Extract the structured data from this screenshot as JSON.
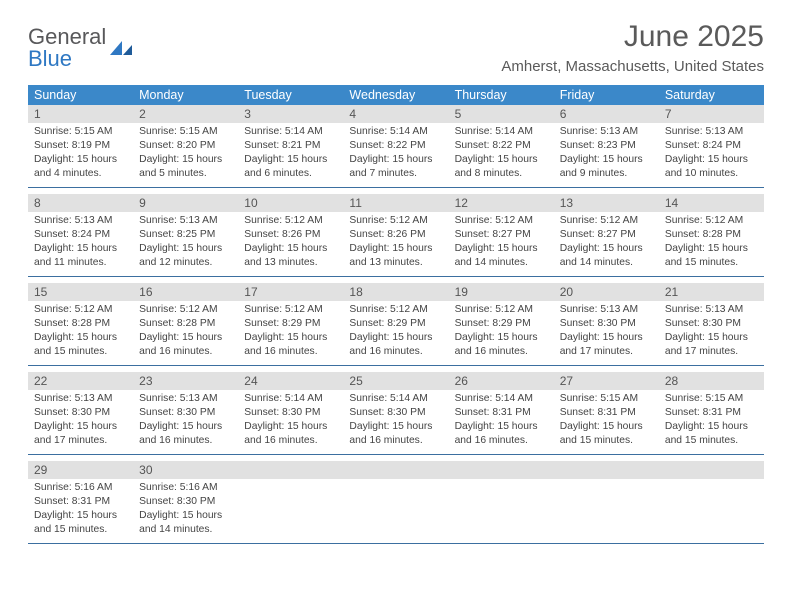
{
  "logo": {
    "text1": "General",
    "text2": "Blue"
  },
  "title": "June 2025",
  "location": "Amherst, Massachusetts, United States",
  "colors": {
    "header_bg": "#3b88c9",
    "daynum_bg": "#e1e1e1",
    "rule": "#3b6fa0",
    "text": "#444444",
    "title_color": "#5a5a5a"
  },
  "dow": [
    "Sunday",
    "Monday",
    "Tuesday",
    "Wednesday",
    "Thursday",
    "Friday",
    "Saturday"
  ],
  "weeks": [
    [
      {
        "n": "1",
        "sr": "5:15 AM",
        "ss": "8:19 PM",
        "dl": "15 hours and 4 minutes."
      },
      {
        "n": "2",
        "sr": "5:15 AM",
        "ss": "8:20 PM",
        "dl": "15 hours and 5 minutes."
      },
      {
        "n": "3",
        "sr": "5:14 AM",
        "ss": "8:21 PM",
        "dl": "15 hours and 6 minutes."
      },
      {
        "n": "4",
        "sr": "5:14 AM",
        "ss": "8:22 PM",
        "dl": "15 hours and 7 minutes."
      },
      {
        "n": "5",
        "sr": "5:14 AM",
        "ss": "8:22 PM",
        "dl": "15 hours and 8 minutes."
      },
      {
        "n": "6",
        "sr": "5:13 AM",
        "ss": "8:23 PM",
        "dl": "15 hours and 9 minutes."
      },
      {
        "n": "7",
        "sr": "5:13 AM",
        "ss": "8:24 PM",
        "dl": "15 hours and 10 minutes."
      }
    ],
    [
      {
        "n": "8",
        "sr": "5:13 AM",
        "ss": "8:24 PM",
        "dl": "15 hours and 11 minutes."
      },
      {
        "n": "9",
        "sr": "5:13 AM",
        "ss": "8:25 PM",
        "dl": "15 hours and 12 minutes."
      },
      {
        "n": "10",
        "sr": "5:12 AM",
        "ss": "8:26 PM",
        "dl": "15 hours and 13 minutes."
      },
      {
        "n": "11",
        "sr": "5:12 AM",
        "ss": "8:26 PM",
        "dl": "15 hours and 13 minutes."
      },
      {
        "n": "12",
        "sr": "5:12 AM",
        "ss": "8:27 PM",
        "dl": "15 hours and 14 minutes."
      },
      {
        "n": "13",
        "sr": "5:12 AM",
        "ss": "8:27 PM",
        "dl": "15 hours and 14 minutes."
      },
      {
        "n": "14",
        "sr": "5:12 AM",
        "ss": "8:28 PM",
        "dl": "15 hours and 15 minutes."
      }
    ],
    [
      {
        "n": "15",
        "sr": "5:12 AM",
        "ss": "8:28 PM",
        "dl": "15 hours and 15 minutes."
      },
      {
        "n": "16",
        "sr": "5:12 AM",
        "ss": "8:28 PM",
        "dl": "15 hours and 16 minutes."
      },
      {
        "n": "17",
        "sr": "5:12 AM",
        "ss": "8:29 PM",
        "dl": "15 hours and 16 minutes."
      },
      {
        "n": "18",
        "sr": "5:12 AM",
        "ss": "8:29 PM",
        "dl": "15 hours and 16 minutes."
      },
      {
        "n": "19",
        "sr": "5:12 AM",
        "ss": "8:29 PM",
        "dl": "15 hours and 16 minutes."
      },
      {
        "n": "20",
        "sr": "5:13 AM",
        "ss": "8:30 PM",
        "dl": "15 hours and 17 minutes."
      },
      {
        "n": "21",
        "sr": "5:13 AM",
        "ss": "8:30 PM",
        "dl": "15 hours and 17 minutes."
      }
    ],
    [
      {
        "n": "22",
        "sr": "5:13 AM",
        "ss": "8:30 PM",
        "dl": "15 hours and 17 minutes."
      },
      {
        "n": "23",
        "sr": "5:13 AM",
        "ss": "8:30 PM",
        "dl": "15 hours and 16 minutes."
      },
      {
        "n": "24",
        "sr": "5:14 AM",
        "ss": "8:30 PM",
        "dl": "15 hours and 16 minutes."
      },
      {
        "n": "25",
        "sr": "5:14 AM",
        "ss": "8:30 PM",
        "dl": "15 hours and 16 minutes."
      },
      {
        "n": "26",
        "sr": "5:14 AM",
        "ss": "8:31 PM",
        "dl": "15 hours and 16 minutes."
      },
      {
        "n": "27",
        "sr": "5:15 AM",
        "ss": "8:31 PM",
        "dl": "15 hours and 15 minutes."
      },
      {
        "n": "28",
        "sr": "5:15 AM",
        "ss": "8:31 PM",
        "dl": "15 hours and 15 minutes."
      }
    ],
    [
      {
        "n": "29",
        "sr": "5:16 AM",
        "ss": "8:31 PM",
        "dl": "15 hours and 15 minutes."
      },
      {
        "n": "30",
        "sr": "5:16 AM",
        "ss": "8:30 PM",
        "dl": "15 hours and 14 minutes."
      },
      null,
      null,
      null,
      null,
      null
    ]
  ],
  "labels": {
    "sunrise": "Sunrise:",
    "sunset": "Sunset:",
    "daylight": "Daylight:"
  }
}
